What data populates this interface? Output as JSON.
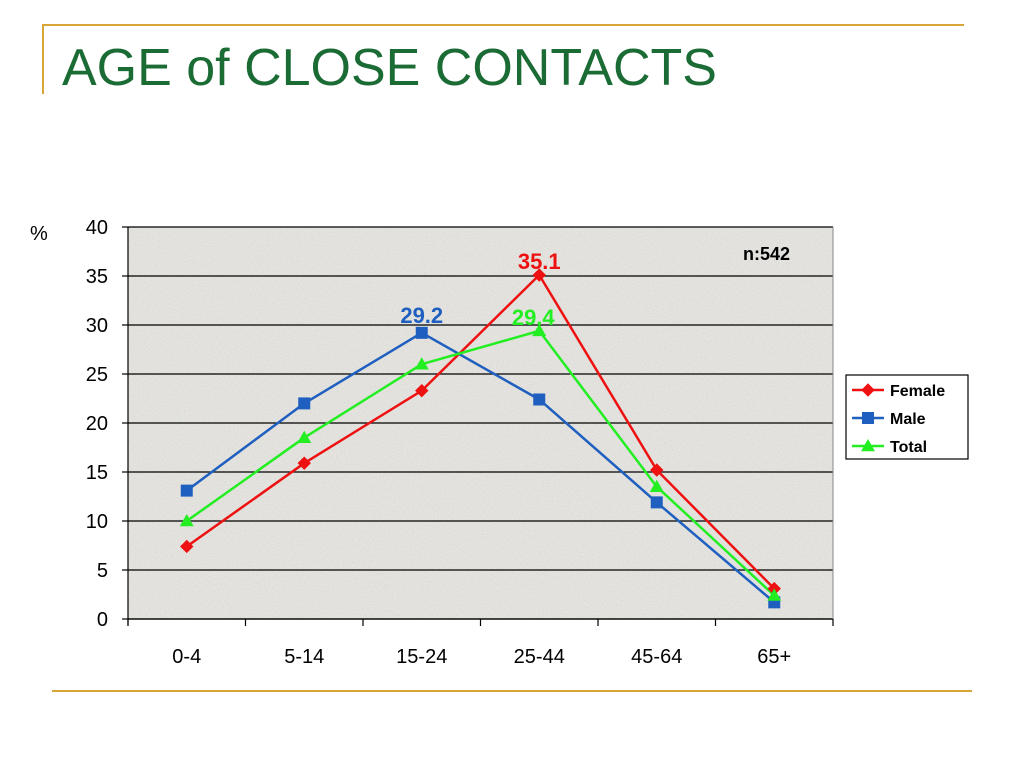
{
  "title": "AGE of CLOSE CONTACTS",
  "colors": {
    "title": "#1b6b35",
    "rule": "#d7a636",
    "female": "#ee1111",
    "male": "#1f5fbf",
    "total": "#22ee22",
    "plot_bg": "#e9e8e3",
    "grid": "#000000"
  },
  "chart_data": {
    "type": "line",
    "title": "",
    "xlabel": "",
    "ylabel": "%",
    "ylim": [
      0,
      40
    ],
    "yticks": [
      0,
      5,
      10,
      15,
      20,
      25,
      30,
      35,
      40
    ],
    "grid": true,
    "legend_position": "right",
    "categories": [
      "0-4",
      "5-14",
      "15-24",
      "25-44",
      "45-64",
      "65+"
    ],
    "series": [
      {
        "name": "Female",
        "marker": "diamond",
        "color": "#ee1111",
        "values": [
          7.4,
          15.9,
          23.3,
          35.1,
          15.2,
          3.1
        ]
      },
      {
        "name": "Male",
        "marker": "square",
        "color": "#1f5fbf",
        "values": [
          13.1,
          22.0,
          29.2,
          22.4,
          11.9,
          1.7
        ]
      },
      {
        "name": "Total",
        "marker": "triangle",
        "color": "#22ee22",
        "values": [
          10.0,
          18.5,
          26.0,
          29.4,
          13.5,
          2.4
        ]
      }
    ],
    "annotations": [
      {
        "text": "n:542"
      },
      {
        "text": "35.1",
        "series": "Female",
        "index": 3
      },
      {
        "text": "29.2",
        "series": "Male",
        "index": 2
      },
      {
        "text": "29.4",
        "series": "Total",
        "index": 3
      }
    ]
  }
}
